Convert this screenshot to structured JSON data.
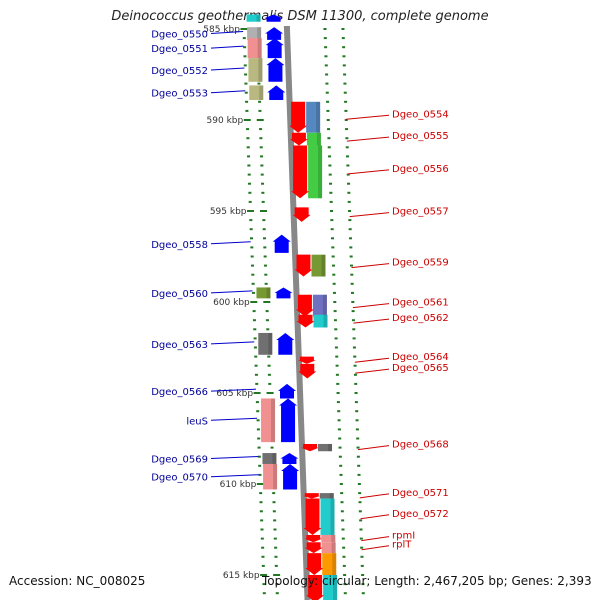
{
  "title": "Deinococcus geothermalis DSM 11300, complete genome",
  "accession": "Accession: NC_008025",
  "summary": "Topology: circular; Length: 2,467,205 bp; Genes: 2,393",
  "scale_labels": [
    {
      "text": "585 kbp",
      "kbp": 585
    },
    {
      "text": "590 kbp",
      "kbp": 590
    },
    {
      "text": "595 kbp",
      "kbp": 595
    },
    {
      "text": "600 kbp",
      "kbp": 600
    },
    {
      "text": "605 kbp",
      "kbp": 605
    },
    {
      "text": "610 kbp",
      "kbp": 610
    },
    {
      "text": "615 kbp",
      "kbp": 615
    }
  ],
  "genes": [
    {
      "label": "Dgeo_0550",
      "strand": "+",
      "start": 584.9,
      "end": 585.6,
      "color": "#b0b0b0"
    },
    {
      "label": "Dgeo_0551",
      "strand": "+",
      "start": 585.5,
      "end": 586.6,
      "color": "#f09090"
    },
    {
      "label": "Dgeo_0552",
      "strand": "+",
      "start": 586.6,
      "end": 587.9,
      "color": "#b8b880"
    },
    {
      "label": "Dgeo_0553",
      "strand": "+",
      "start": 588.1,
      "end": 588.9,
      "color": "#b8b880"
    },
    {
      "label": "Dgeo_0554",
      "strand": "-",
      "start": 589.0,
      "end": 590.7,
      "color": "#5588c0"
    },
    {
      "label": "Dgeo_0555",
      "strand": "-",
      "start": 590.7,
      "end": 591.4,
      "color": "#44cc44"
    },
    {
      "label": "Dgeo_0556",
      "strand": "-",
      "start": 591.4,
      "end": 594.3,
      "color": "#44cc44"
    },
    {
      "label": "Dgeo_0557",
      "strand": "-",
      "start": 594.8,
      "end": 595.6,
      "color": "#ffffff"
    },
    {
      "label": "Dgeo_0558",
      "strand": "+",
      "start": 596.3,
      "end": 597.3,
      "color": "#ffffff"
    },
    {
      "label": "Dgeo_0559",
      "strand": "-",
      "start": 597.4,
      "end": 598.6,
      "color": "#779933"
    },
    {
      "label": "Dgeo_0560",
      "strand": "+",
      "start": 599.2,
      "end": 599.8,
      "color": "#779933"
    },
    {
      "label": "Dgeo_0561",
      "strand": "-",
      "start": 599.6,
      "end": 600.8,
      "color": "#7070c0"
    },
    {
      "label": "Dgeo_0562",
      "strand": "-",
      "start": 600.7,
      "end": 601.4,
      "color": "#22cccc"
    },
    {
      "label": "Dgeo_0563",
      "strand": "+",
      "start": 601.7,
      "end": 602.9,
      "color": "#707070"
    },
    {
      "label": "Dgeo_0564",
      "strand": "-",
      "start": 603.0,
      "end": 603.4,
      "color": "#ffffff"
    },
    {
      "label": "Dgeo_0565",
      "strand": "-",
      "start": 603.4,
      "end": 604.2,
      "color": "#ffffff"
    },
    {
      "label": "Dgeo_0566",
      "strand": "+",
      "start": 604.5,
      "end": 605.3,
      "color": "#ffffff"
    },
    {
      "label": "leuS",
      "strand": "+",
      "start": 605.3,
      "end": 607.7,
      "color": "#f09090"
    },
    {
      "label": "Dgeo_0568",
      "strand": "-",
      "start": 607.8,
      "end": 608.2,
      "color": "#707070"
    },
    {
      "label": "Dgeo_0569",
      "strand": "+",
      "start": 608.3,
      "end": 608.9,
      "color": "#707070"
    },
    {
      "label": "Dgeo_0570",
      "strand": "+",
      "start": 608.9,
      "end": 610.3,
      "color": "#f09090"
    },
    {
      "label": "Dgeo_0571",
      "strand": "-",
      "start": 610.5,
      "end": 610.8,
      "color": "#707070"
    },
    {
      "label": "Dgeo_0572",
      "strand": "-",
      "start": 610.8,
      "end": 612.8,
      "color": "#22cccc"
    },
    {
      "label": "rpmI",
      "strand": "-",
      "start": 612.8,
      "end": 613.2,
      "color": "#f09090"
    },
    {
      "label": "rplT",
      "strand": "-",
      "start": 613.2,
      "end": 613.8,
      "color": "#f09090"
    }
  ],
  "edge_genes": [
    {
      "strand": "+",
      "start": 584.2,
      "end": 584.6,
      "color": "#22cccc"
    },
    {
      "strand": "-",
      "start": 613.8,
      "end": 615.0,
      "color": "#ff9900"
    },
    {
      "strand": "-",
      "start": 615.0,
      "end": 616.5,
      "color": "#22cccc"
    }
  ],
  "colors": {
    "forward_arrow": "#0000ff",
    "reverse_arrow": "#ff0000",
    "forward_label": "#000099",
    "reverse_label": "#cc0000",
    "backbone": "#888888",
    "tick": "#227722"
  }
}
